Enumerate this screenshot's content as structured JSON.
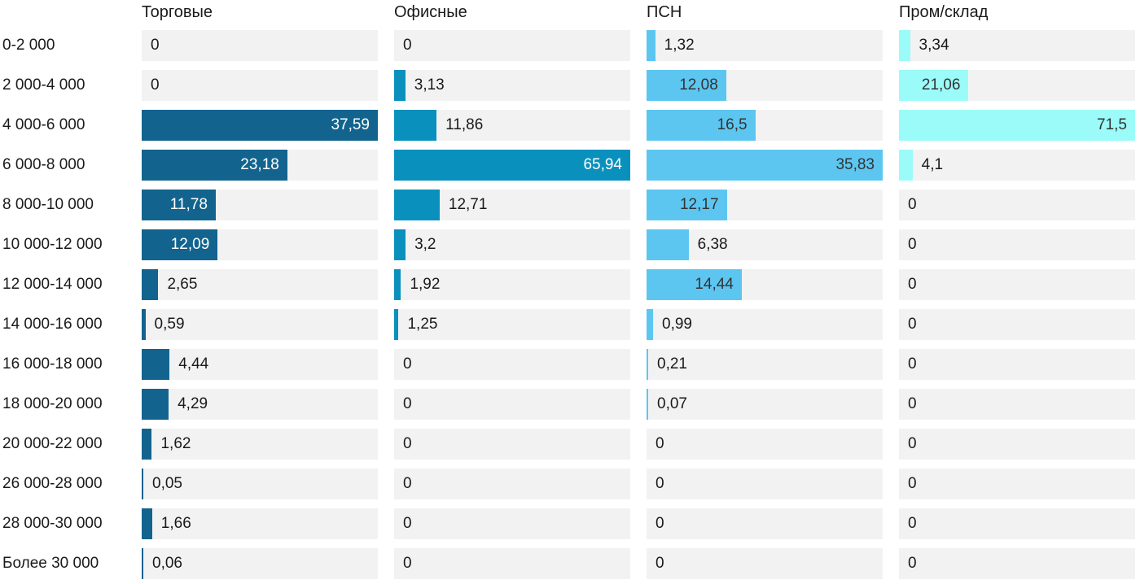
{
  "chart_data": {
    "type": "bar",
    "orientation": "horizontal",
    "title": "",
    "xlabel": "",
    "ylabel": "",
    "value_scale": "each column scaled to its own max value",
    "grid": false,
    "legend_position": "column headers on top",
    "track_color": "#f2f2f2",
    "text_color": "#1a1a1a",
    "categories": [
      "0-2 000",
      "2 000-4 000",
      "4 000-6 000",
      "6 000-8 000",
      "8 000-10 000",
      "10 000-12 000",
      "12 000-14 000",
      "14 000-16 000",
      "16 000-18 000",
      "18 000-20 000",
      "20 000-22 000",
      "26 000-28 000",
      "28 000-30 000",
      "Более 30 000"
    ],
    "series": [
      {
        "name": "Торговые",
        "color": "#12648e",
        "label_inside_color": "#ffffff",
        "values": [
          0,
          0,
          37.59,
          23.18,
          11.78,
          12.09,
          2.65,
          0.59,
          4.44,
          4.29,
          1.62,
          0.05,
          1.66,
          0.06
        ],
        "labels": [
          "0",
          "0",
          "37,59",
          "23,18",
          "11,78",
          "12,09",
          "2,65",
          "0,59",
          "4,44",
          "4,29",
          "1,62",
          "0,05",
          "1,66",
          "0,06"
        ]
      },
      {
        "name": "Офисные",
        "color": "#0a90bd",
        "label_inside_color": "#ffffff",
        "values": [
          0,
          3.13,
          11.86,
          65.94,
          12.71,
          3.2,
          1.92,
          1.25,
          0,
          0,
          0,
          0,
          0,
          0
        ],
        "labels": [
          "0",
          "3,13",
          "11,86",
          "65,94",
          "12,71",
          "3,2",
          "1,92",
          "1,25",
          "0",
          "0",
          "0",
          "0",
          "0",
          "0"
        ]
      },
      {
        "name": "ПСН",
        "color": "#5cc6f1",
        "label_inside_color": "#333333",
        "values": [
          1.32,
          12.08,
          16.5,
          35.83,
          12.17,
          6.38,
          14.44,
          0.99,
          0.21,
          0.07,
          0,
          0,
          0,
          0
        ],
        "labels": [
          "1,32",
          "12,08",
          "16,5",
          "35,83",
          "12,17",
          "6,38",
          "14,44",
          "0,99",
          "0,21",
          "0,07",
          "0",
          "0",
          "0",
          "0"
        ]
      },
      {
        "name": "Пром/склад",
        "color": "#9bfbf9",
        "label_inside_color": "#333333",
        "values": [
          3.34,
          21.06,
          71.5,
          4.1,
          0,
          0,
          0,
          0,
          0,
          0,
          0,
          0,
          0,
          0
        ],
        "labels": [
          "3,34",
          "21,06",
          "71,5",
          "4,1",
          "0",
          "0",
          "0",
          "0",
          "0",
          "0",
          "0",
          "0",
          "0",
          "0"
        ]
      }
    ]
  }
}
